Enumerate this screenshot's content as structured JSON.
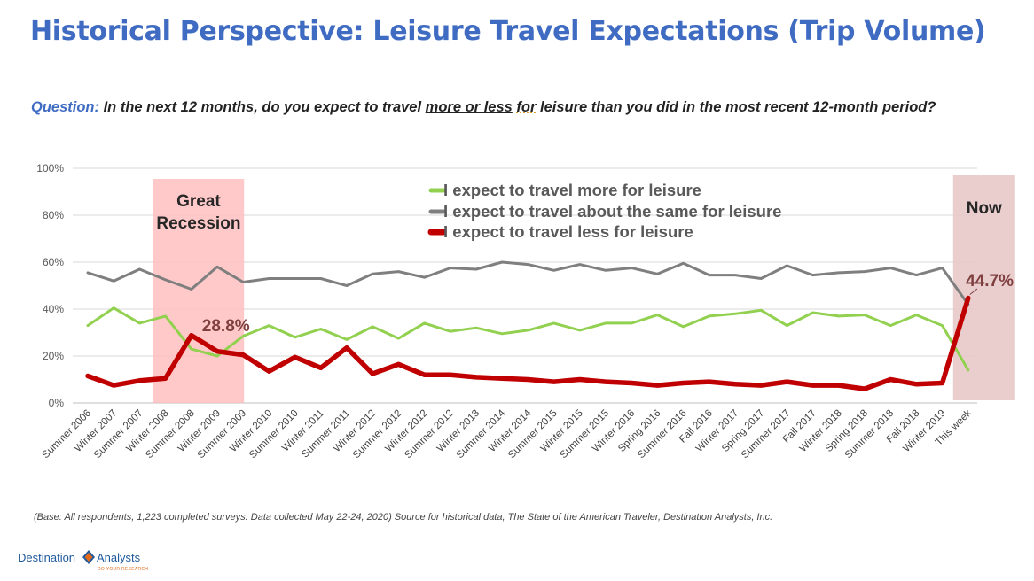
{
  "title": "Historical Perspective: Leisure Travel Expectations (Trip Volume)",
  "question": {
    "label": "Question:",
    "part1": " In the next 12 months, do you expect to travel ",
    "more_less": "more or less",
    "space": " ",
    "for": "for",
    "part2": " leisure than you did in the most recent 12-month period?"
  },
  "footnote": "(Base: All respondents, 1,223 completed surveys. Data collected May 22-24, 2020) Source for historical data, The State of the American Traveler, Destination Analysts, Inc.",
  "logo": {
    "word1": "Destination",
    "word2": "Analysts",
    "tagline": "DO YOUR RESEARCH"
  },
  "colors": {
    "title": "#3f6cc2",
    "more": "#92d050",
    "same": "#7f7f7f",
    "less": "#c00000",
    "recession_band": "#ffc0c0",
    "now_band": "#e6c5c5"
  },
  "chart_data": {
    "type": "line",
    "ylim": [
      0,
      100
    ],
    "yticks": [
      "0%",
      "20%",
      "40%",
      "60%",
      "80%",
      "100%"
    ],
    "categories": [
      "Summer 2006",
      "Winter 2007",
      "Summer 2007",
      "Winter 2008",
      "Summer 2008",
      "Winter 2009",
      "Summer 2009",
      "Winter 2010",
      "Summer 2010",
      "Winter 2011",
      "Summer 2011",
      "Winter 2012",
      "Summer 2012",
      "Winter 2012",
      "Summer 2012",
      "Winter 2013",
      "Summer 2014",
      "Winter 2014",
      "Summer 2015",
      "Winter 2015",
      "Summer 2015",
      "Winter 2016",
      "Spring 2016",
      "Summer 2016",
      "Fall 2016",
      "Winter 2017",
      "Spring 2017",
      "Summer 2017",
      "Fall 2017",
      "Winter 2018",
      "Spring 2018",
      "Summer 2018",
      "Fall 2018",
      "Winter 2019",
      "This week"
    ],
    "series": [
      {
        "name": "I expect to travel more for leisure",
        "color": "#92d050",
        "values": [
          33,
          40.5,
          34,
          37,
          23,
          20,
          28.5,
          33,
          28,
          31.5,
          27,
          32.5,
          27.5,
          34,
          30.5,
          32,
          29.5,
          31,
          34,
          31,
          34,
          34,
          37.5,
          32.5,
          37,
          38,
          39.5,
          33,
          38.5,
          37,
          37.5,
          33,
          37.5,
          33,
          14
        ]
      },
      {
        "name": "I expect to travel about the same for leisure",
        "color": "#7f7f7f",
        "values": [
          55.5,
          52,
          57,
          52.5,
          48.5,
          58,
          51.5,
          53,
          53,
          53,
          50,
          55,
          56,
          53.5,
          57.5,
          57,
          60,
          59,
          56.5,
          59,
          56.5,
          57.5,
          55,
          59.5,
          54.5,
          54.5,
          53,
          58.5,
          54.5,
          55.5,
          56,
          57.5,
          54.5,
          57.5,
          42
        ]
      },
      {
        "name": "I expect to travel less for leisure",
        "color": "#c00000",
        "values": [
          11.5,
          7.5,
          9.5,
          10.5,
          28.8,
          22,
          20.5,
          13.5,
          19.5,
          15,
          23.5,
          12.5,
          16.5,
          12,
          12,
          11,
          10.5,
          10,
          9,
          10,
          9,
          8.5,
          7.5,
          8.5,
          9,
          8,
          7.5,
          9,
          7.5,
          7.5,
          6,
          10,
          8,
          8.5,
          44.7
        ]
      }
    ],
    "bands": [
      {
        "label_line1": "Great",
        "label_line2": "Recession",
        "from_index": 3,
        "to_index": 6,
        "color": "#ffc0c0"
      },
      {
        "label_line1": "Now",
        "label_line2": "",
        "from_index": 34,
        "to_index": 34,
        "color": "#e6c5c5"
      }
    ],
    "annotations": [
      {
        "text": "28.8%",
        "series": 2,
        "index": 4
      },
      {
        "text": "44.7%",
        "series": 2,
        "index": 34
      }
    ]
  }
}
